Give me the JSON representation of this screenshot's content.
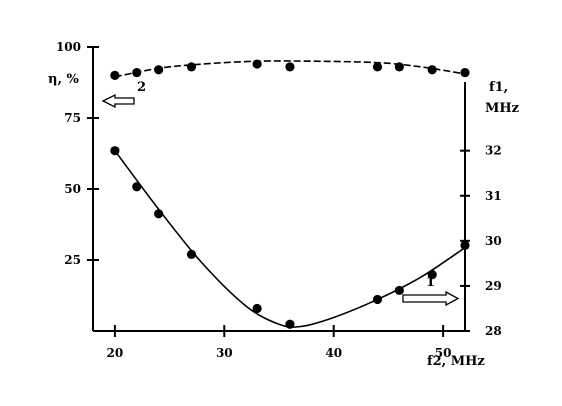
{
  "chart_data": {
    "type": "scatter",
    "x_axis": {
      "label": "f2, MHz",
      "range": [
        18,
        52
      ],
      "ticks": [
        20,
        30,
        40,
        50
      ]
    },
    "y_axis_left": {
      "label": "η, %",
      "range": [
        0,
        100
      ],
      "ticks": [
        25,
        50,
        75,
        100
      ]
    },
    "y_axis_right": {
      "label_line1": "f1,",
      "label_line2": "MHz",
      "range": [
        28,
        34.3
      ],
      "ticks": [
        28,
        29,
        30,
        31,
        32
      ]
    },
    "grid": false,
    "series": [
      {
        "name": "1",
        "axis": "right",
        "x": [
          20,
          22,
          24,
          27,
          33,
          36,
          44,
          46,
          49,
          52
        ],
        "y": [
          32.0,
          31.2,
          30.6,
          29.7,
          28.5,
          28.15,
          28.7,
          28.9,
          29.25,
          29.9
        ],
        "fit": [
          [
            20,
            32.0
          ],
          [
            24,
            30.7
          ],
          [
            28,
            29.5
          ],
          [
            32,
            28.55
          ],
          [
            35,
            28.15
          ],
          [
            37,
            28.1
          ],
          [
            40,
            28.3
          ],
          [
            44,
            28.7
          ],
          [
            48,
            29.2
          ],
          [
            52,
            29.85
          ]
        ]
      },
      {
        "name": "2",
        "axis": "left",
        "x": [
          20,
          22,
          24,
          27,
          33,
          36,
          44,
          46,
          49,
          52
        ],
        "y": [
          90,
          91,
          92,
          93,
          94,
          93,
          93,
          93,
          92,
          91
        ],
        "fit": [
          [
            20,
            89.5
          ],
          [
            24,
            92.5
          ],
          [
            28,
            94
          ],
          [
            33,
            95
          ],
          [
            38,
            95
          ],
          [
            44,
            94.5
          ],
          [
            48,
            93
          ],
          [
            52,
            90.5
          ]
        ]
      }
    ],
    "annotations": [
      {
        "text": "2",
        "direction": "left",
        "axis": "left"
      },
      {
        "text": "1",
        "direction": "right",
        "axis": "right"
      }
    ]
  }
}
